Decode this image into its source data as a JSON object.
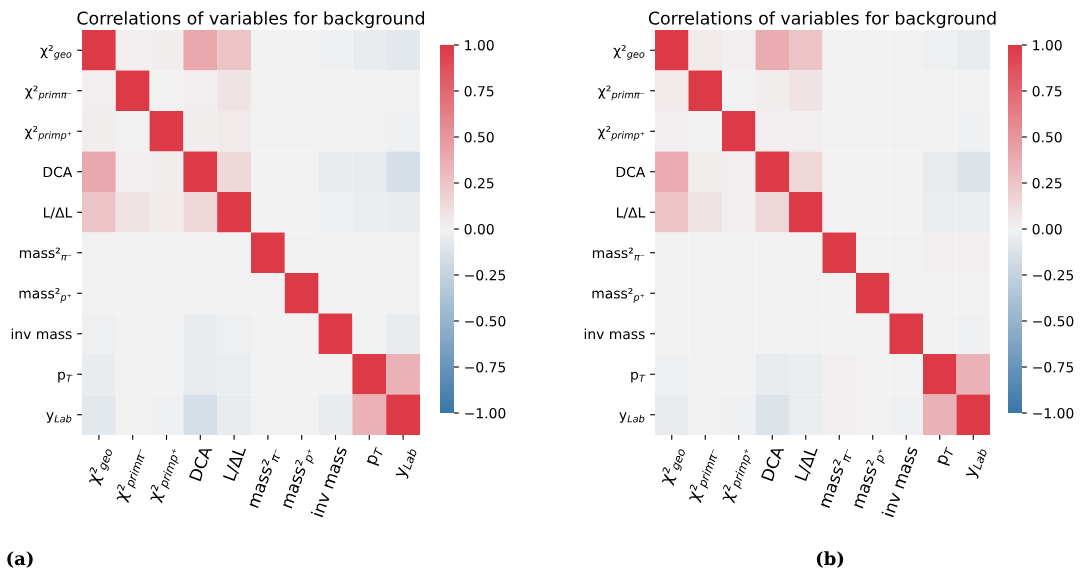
{
  "chart_data": [
    {
      "type": "heatmap",
      "title": "Correlations of variables for background",
      "categories": [
        "χ²$_{geo}$",
        "χ²$_{primπ⁻}$",
        "χ²$_{primp⁺}$",
        "DCA",
        "L/ΔL",
        "mass²$_{π⁻}$",
        "mass²$_{p⁺}$",
        "inv mass",
        "p$_{T}$",
        "y$_{Lab}$"
      ],
      "y_categories": [
        "χ²$_{geo}$",
        "χ²$_{primπ⁻}$",
        "χ²$_{primp⁺}$",
        "DCA",
        "L/ΔL",
        "mass²$_{π⁻}$",
        "mass²$_{p⁺}$",
        "inv mass",
        "p$_{T}$",
        "y$_{Lab}$"
      ],
      "cells": [
        [
          1,
          0.02,
          0.03,
          0.4,
          0.25,
          0,
          0,
          -0.03,
          -0.05,
          -0.08
        ],
        [
          0.02,
          1,
          0,
          0.02,
          0.08,
          0,
          0,
          0,
          0,
          0
        ],
        [
          0.03,
          0,
          1,
          0.03,
          0.04,
          0,
          0,
          0,
          0,
          -0.02
        ],
        [
          0.4,
          0.02,
          0.03,
          1,
          0.15,
          0,
          0,
          -0.05,
          -0.06,
          -0.15
        ],
        [
          0.25,
          0.08,
          0.04,
          0.15,
          1,
          0,
          0,
          -0.03,
          -0.04,
          -0.05
        ],
        [
          0,
          0,
          0,
          0,
          0,
          1,
          0,
          0,
          0,
          0
        ],
        [
          0,
          0,
          0,
          0,
          0,
          0,
          1,
          0,
          0,
          0
        ],
        [
          -0.03,
          0,
          0,
          -0.05,
          -0.03,
          0,
          0,
          1,
          0,
          -0.05
        ],
        [
          -0.05,
          0,
          0,
          -0.06,
          -0.04,
          0,
          0,
          0,
          1,
          0.35
        ],
        [
          -0.08,
          0,
          -0.02,
          -0.15,
          -0.05,
          0,
          0,
          -0.05,
          0.35,
          1
        ]
      ],
      "clim": [
        -1,
        1
      ],
      "cticks": [
        {
          "value": 1,
          "label": "1.00"
        },
        {
          "value": 0.75,
          "label": "0.75"
        },
        {
          "value": 0.5,
          "label": "0.50"
        },
        {
          "value": 0.25,
          "label": "0.25"
        },
        {
          "value": 0,
          "label": "0.00"
        },
        {
          "value": -0.25,
          "label": "−0.25"
        },
        {
          "value": -0.5,
          "label": "−0.50"
        },
        {
          "value": -0.75,
          "label": "−0.75"
        },
        {
          "value": -1,
          "label": "−1.00"
        }
      ],
      "annotations": [
        "(a)"
      ]
    },
    {
      "type": "heatmap",
      "title": "Correlations of variables for background",
      "categories": [
        "χ²$_{geo}$",
        "χ²$_{primπ⁻}$",
        "χ²$_{primp⁺}$",
        "DCA",
        "L/ΔL",
        "mass²$_{π⁻}$",
        "mass²$_{p⁺}$",
        "inv mass",
        "p$_{T}$",
        "y$_{Lab}$"
      ],
      "y_categories": [
        "χ²$_{geo}$",
        "χ²$_{primπ⁻}$",
        "χ²$_{primp⁺}$",
        "DCA",
        "L/ΔL",
        "mass²$_{π⁻}$",
        "mass²$_{p⁺}$",
        "inv mass",
        "p$_{T}$",
        "y$_{Lab}$"
      ],
      "cells": [
        [
          1,
          0.04,
          0.02,
          0.38,
          0.25,
          0,
          0,
          0,
          -0.03,
          -0.06
        ],
        [
          0.04,
          1,
          0,
          0.03,
          0.08,
          0,
          0,
          0,
          0,
          0
        ],
        [
          0.02,
          0,
          1,
          0.02,
          0.02,
          0,
          0,
          0,
          0,
          -0.02
        ],
        [
          0.38,
          0.03,
          0.02,
          1,
          0.15,
          0,
          0,
          0,
          -0.06,
          -0.12
        ],
        [
          0.25,
          0.08,
          0.02,
          0.15,
          1,
          0,
          0,
          0,
          -0.04,
          -0.04
        ],
        [
          0,
          0,
          0,
          0,
          0,
          1,
          0,
          0,
          0.02,
          0.02
        ],
        [
          0,
          0,
          0,
          0,
          0,
          0,
          1,
          0,
          0,
          0
        ],
        [
          0,
          0,
          0,
          0,
          0,
          0,
          0,
          1,
          0,
          -0.02
        ],
        [
          -0.03,
          0,
          0,
          -0.06,
          -0.04,
          0.02,
          0,
          0,
          1,
          0.35
        ],
        [
          -0.06,
          0,
          -0.02,
          -0.12,
          -0.04,
          0.02,
          0,
          -0.02,
          0.35,
          1
        ]
      ],
      "clim": [
        -1,
        1
      ],
      "cticks": [
        {
          "value": 1,
          "label": "1.00"
        },
        {
          "value": 0.75,
          "label": "0.75"
        },
        {
          "value": 0.5,
          "label": "0.50"
        },
        {
          "value": 0.25,
          "label": "0.25"
        },
        {
          "value": 0,
          "label": "0.00"
        },
        {
          "value": -0.25,
          "label": "−0.25"
        },
        {
          "value": -0.5,
          "label": "−0.50"
        },
        {
          "value": -0.75,
          "label": "−0.75"
        },
        {
          "value": -1,
          "label": "−1.00"
        }
      ],
      "annotations": [
        "(b)"
      ]
    }
  ]
}
